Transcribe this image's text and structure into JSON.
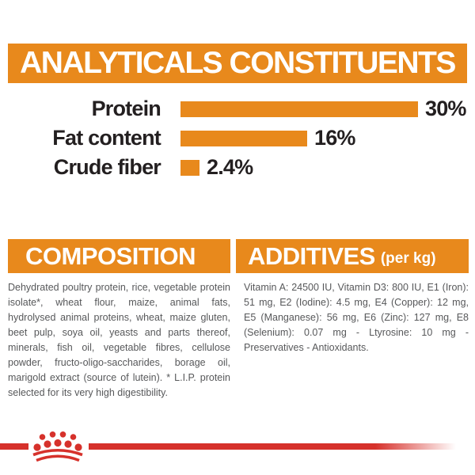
{
  "analyticals": {
    "title": "ANALYTICALS CONSTITUENTS"
  },
  "composition": {
    "title": "COMPOSITION",
    "body": "Dehydrated poultry protein, rice, vegetable protein isolate*, wheat flour, maize, animal fats, hydrolysed animal proteins, wheat, maize gluten, beet pulp, soya oil, yeasts and parts thereof, minerals, fish oil, vegetable fibres, cellulose powder, fructo-oligo-saccharides, borage oil, marigold extract (source of lutein). * L.I.P. protein selected for its very high digestibility."
  },
  "additives": {
    "title": "ADDITIVES",
    "unit_label": "(per kg)",
    "body": "Vitamin A: 24500 IU, Vitamin D3: 800 IU, E1 (Iron): 51 mg, E2 (Iodine): 4.5 mg, E4 (Copper): 12 mg, E5 (Manganese): 56 mg, E6 (Zinc): 127 mg, E8 (Selenium): 0.07 mg - Ltyrosine: 10 mg - Preservatives - Antioxidants."
  },
  "footer": {
    "logo_icon": "royal-canin-crown-icon"
  },
  "colors": {
    "orange": "#E8891C",
    "red": "#D6312B",
    "ink": "#231F20",
    "body-gray": "#57585A"
  },
  "chart_data": {
    "type": "bar",
    "orientation": "horizontal",
    "title": "ANALYTICALS CONSTITUENTS",
    "categories": [
      "Protein",
      "Fat content",
      "Crude fiber"
    ],
    "values": [
      30,
      16,
      2.4
    ],
    "value_labels": [
      "30%",
      "16%",
      "2.4%"
    ],
    "xlabel": "",
    "ylabel": "",
    "xlim": [
      0,
      30
    ],
    "grid": false,
    "legend": false,
    "bar_color": "#E8891C"
  }
}
